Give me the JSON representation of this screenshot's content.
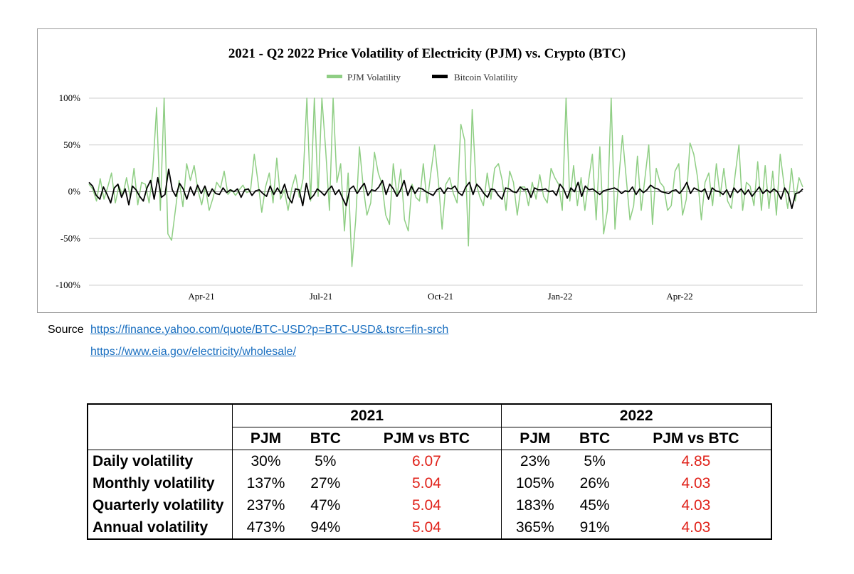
{
  "chart_data": {
    "type": "line",
    "title": "2021 - Q2 2022 Price Volatility of Electricity (PJM) vs. Crypto (BTC)",
    "legend_position": "top-center",
    "grid": true,
    "x_ticks": [
      "Apr-21",
      "Jul-21",
      "Oct-21",
      "Jan-22",
      "Apr-22"
    ],
    "y_ticks": [
      "100%",
      "50%",
      "0%",
      "-50%",
      "-100%"
    ],
    "ylim": [
      -100,
      100
    ],
    "series": [
      {
        "name": "PJM Volatility",
        "color": "#8fce84",
        "values": [
          8,
          3,
          -10,
          14,
          -8,
          5,
          20,
          -12,
          6,
          -4,
          15,
          -6,
          25,
          -14,
          10,
          8,
          -12,
          22,
          90,
          -20,
          100,
          -45,
          -52,
          -20,
          12,
          -16,
          30,
          12,
          28,
          2,
          -14,
          5,
          -20,
          -7,
          10,
          4,
          22,
          -3,
          2,
          -4,
          2,
          7,
          -1,
          1,
          40,
          10,
          -22,
          5,
          20,
          -12,
          36,
          -8,
          2,
          -20,
          4,
          18,
          -6,
          14,
          100,
          -10,
          100,
          -5,
          100,
          45,
          -20,
          100,
          10,
          30,
          -42,
          20,
          -80,
          -30,
          48,
          5,
          -25,
          -12,
          42,
          20,
          8,
          -25,
          -35,
          30,
          -5,
          24,
          -30,
          -42,
          8,
          -6,
          -10,
          30,
          -12,
          20,
          50,
          12,
          -40,
          8,
          15,
          -2,
          -12,
          72,
          55,
          -58,
          88,
          10,
          -5,
          -15,
          20,
          -8,
          25,
          30,
          12,
          -20,
          22,
          10,
          -25,
          5,
          5,
          -15,
          10,
          -8,
          18,
          -5,
          -12,
          25,
          15,
          8,
          -20,
          100,
          -10,
          28,
          -15,
          15,
          -20,
          12,
          40,
          -30,
          48,
          -45,
          -20,
          100,
          -40,
          12,
          60,
          15,
          -30,
          -15,
          38,
          -20,
          15,
          50,
          -35,
          25,
          10,
          5,
          -20,
          -15,
          22,
          30,
          -25,
          -8,
          52,
          40,
          15,
          -30,
          10,
          20,
          -15,
          30,
          -5,
          25,
          -10,
          -18,
          18,
          50,
          -20,
          10,
          6,
          -15,
          32,
          -20,
          28,
          -18,
          22,
          -25,
          40,
          8,
          -18,
          25,
          -10,
          15,
          5
        ]
      },
      {
        "name": "Bitcoin Volatility",
        "color": "#000000",
        "values": [
          10,
          6,
          -4,
          -8,
          5,
          -3,
          -12,
          4,
          8,
          -6,
          3,
          -14,
          6,
          2,
          -5,
          -10,
          4,
          12,
          -8,
          15,
          -6,
          -3,
          24,
          2,
          -5,
          9,
          3,
          -8,
          5,
          -4,
          7,
          -2,
          6,
          -5,
          3,
          -2,
          -3,
          4,
          -1,
          2,
          0,
          3,
          -6,
          2,
          3,
          -4,
          1,
          2,
          -2,
          -5,
          6,
          -3,
          4,
          -2,
          8,
          -6,
          -12,
          3,
          2,
          -15,
          9,
          -8,
          -4,
          3,
          0,
          -4,
          2,
          6,
          -3,
          2,
          -7,
          -15,
          3,
          6,
          -2,
          4,
          9,
          -4,
          2,
          1,
          5,
          12,
          -3,
          8,
          3,
          -5,
          2,
          12,
          -4,
          6,
          -2,
          4,
          3,
          0,
          -2,
          -4,
          2,
          4,
          -2,
          4,
          3,
          6,
          -1,
          -4,
          5,
          10,
          -3,
          8,
          4,
          -2,
          -6,
          3,
          2,
          -4,
          -8,
          4,
          3,
          0,
          -1,
          5,
          2,
          3,
          -6,
          4,
          2,
          2,
          3,
          0,
          1,
          -4,
          8,
          3,
          -7,
          4,
          0,
          10,
          -5,
          6,
          2,
          3,
          0,
          -3,
          1,
          2,
          3,
          4,
          2,
          -2,
          1,
          0,
          5,
          -3,
          3,
          -1,
          2,
          7,
          4,
          3,
          0,
          -1,
          -2,
          1,
          2,
          -2,
          3,
          10,
          -2,
          4,
          2,
          0,
          3,
          -8,
          4,
          1,
          0,
          -3,
          2,
          -6,
          4,
          -1,
          3,
          -3,
          2,
          -5,
          0,
          5,
          -2,
          2,
          -1,
          3,
          0,
          -8,
          4,
          -2,
          -18,
          -2,
          -1,
          3
        ]
      }
    ]
  },
  "sources": {
    "label": "Source",
    "links": [
      "https://finance.yahoo.com/quote/BTC-USD?p=BTC-USD&.tsrc=fin-srch",
      "https://www.eia.gov/electricity/wholesale/"
    ]
  },
  "table": {
    "years": [
      "2021",
      "2022"
    ],
    "columns": [
      "PJM",
      "BTC",
      "PJM vs BTC",
      "PJM",
      "BTC",
      "PJM vs BTC"
    ],
    "rows": [
      {
        "label": "Daily volatility",
        "values": [
          "30%",
          "5%",
          "6.07",
          "23%",
          "5%",
          "4.85"
        ]
      },
      {
        "label": "Monthly volatility",
        "values": [
          "137%",
          "27%",
          "5.04",
          "105%",
          "26%",
          "4.03"
        ]
      },
      {
        "label": "Quarterly volatility",
        "values": [
          "237%",
          "47%",
          "5.04",
          "183%",
          "45%",
          "4.03"
        ]
      },
      {
        "label": "Annual volatility",
        "values": [
          "473%",
          "94%",
          "5.04",
          "365%",
          "91%",
          "4.03"
        ]
      }
    ],
    "ratio_color": "#e0221a"
  }
}
